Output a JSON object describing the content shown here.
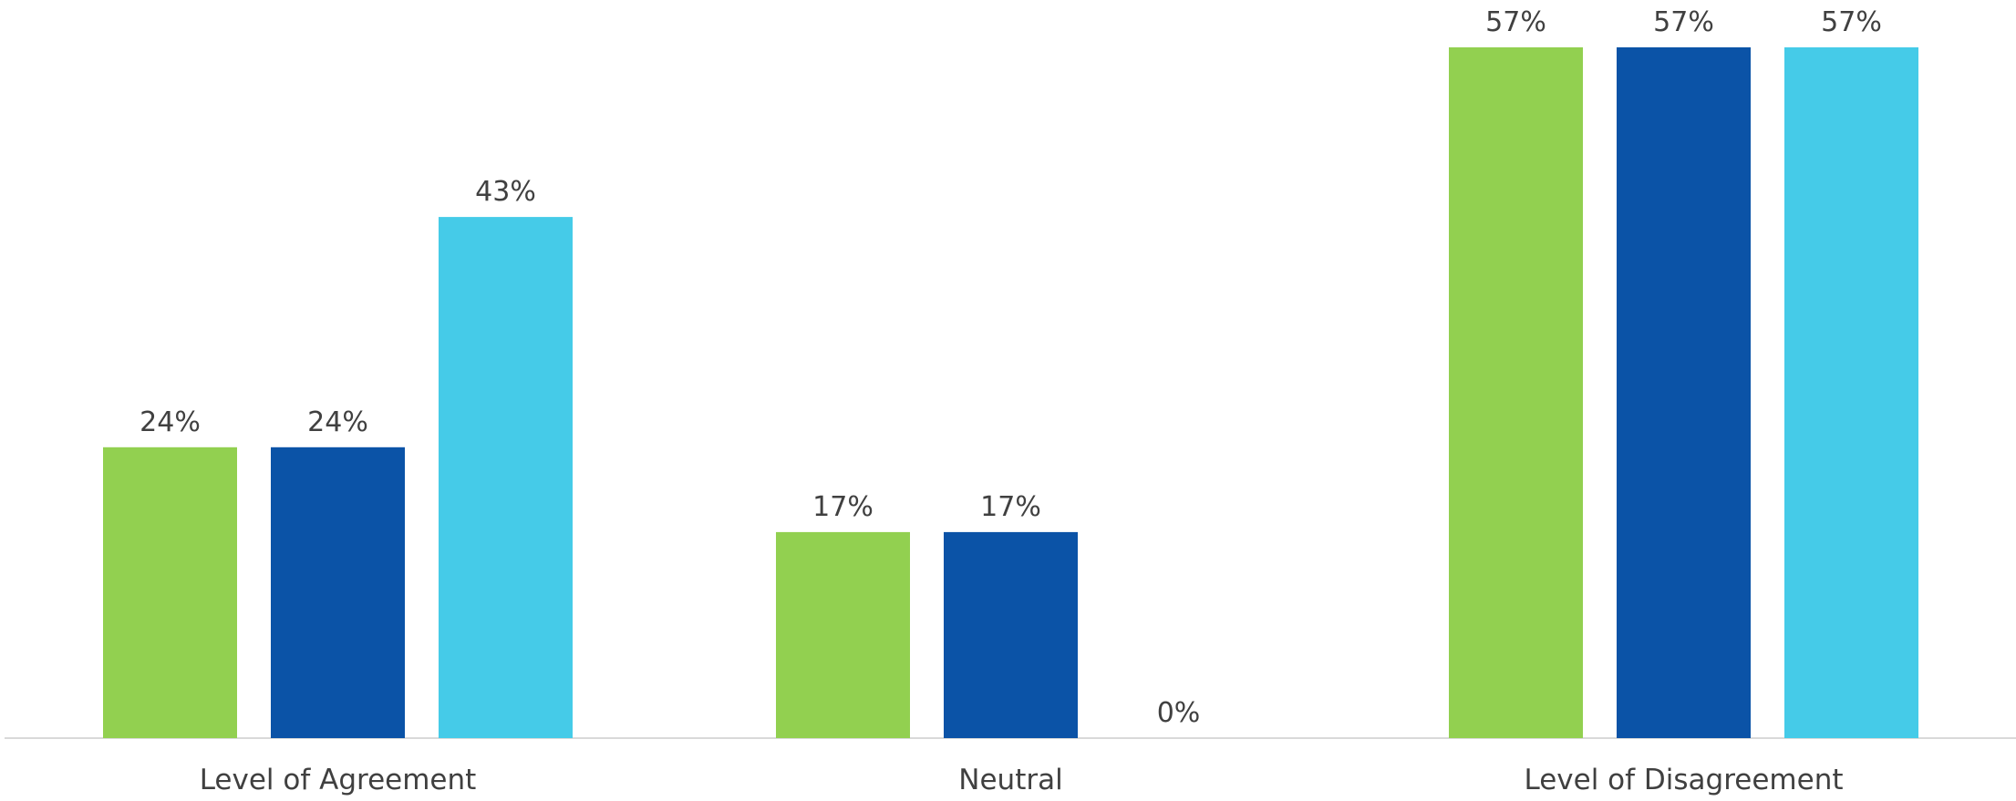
{
  "chart_data": {
    "type": "bar",
    "title": "",
    "xlabel": "",
    "ylabel": "",
    "ylim": [
      0,
      60
    ],
    "grid": false,
    "legend": "none",
    "categories": [
      "Level of Agreement",
      "Neutral",
      "Level of Disagreement"
    ],
    "series": [
      {
        "values": [
          24,
          17,
          57
        ],
        "labels": [
          "24%",
          "17%",
          "57%"
        ],
        "color": "#92d050"
      },
      {
        "values": [
          24,
          17,
          57
        ],
        "labels": [
          "24%",
          "17%",
          "57%"
        ],
        "color": "#0b53a7"
      },
      {
        "values": [
          43,
          0,
          57
        ],
        "labels": [
          "43%",
          "0%",
          "57%"
        ],
        "color": "#45cbe8"
      }
    ],
    "colors": {
      "axis": "#d9d9d9",
      "text": "#404040"
    }
  }
}
